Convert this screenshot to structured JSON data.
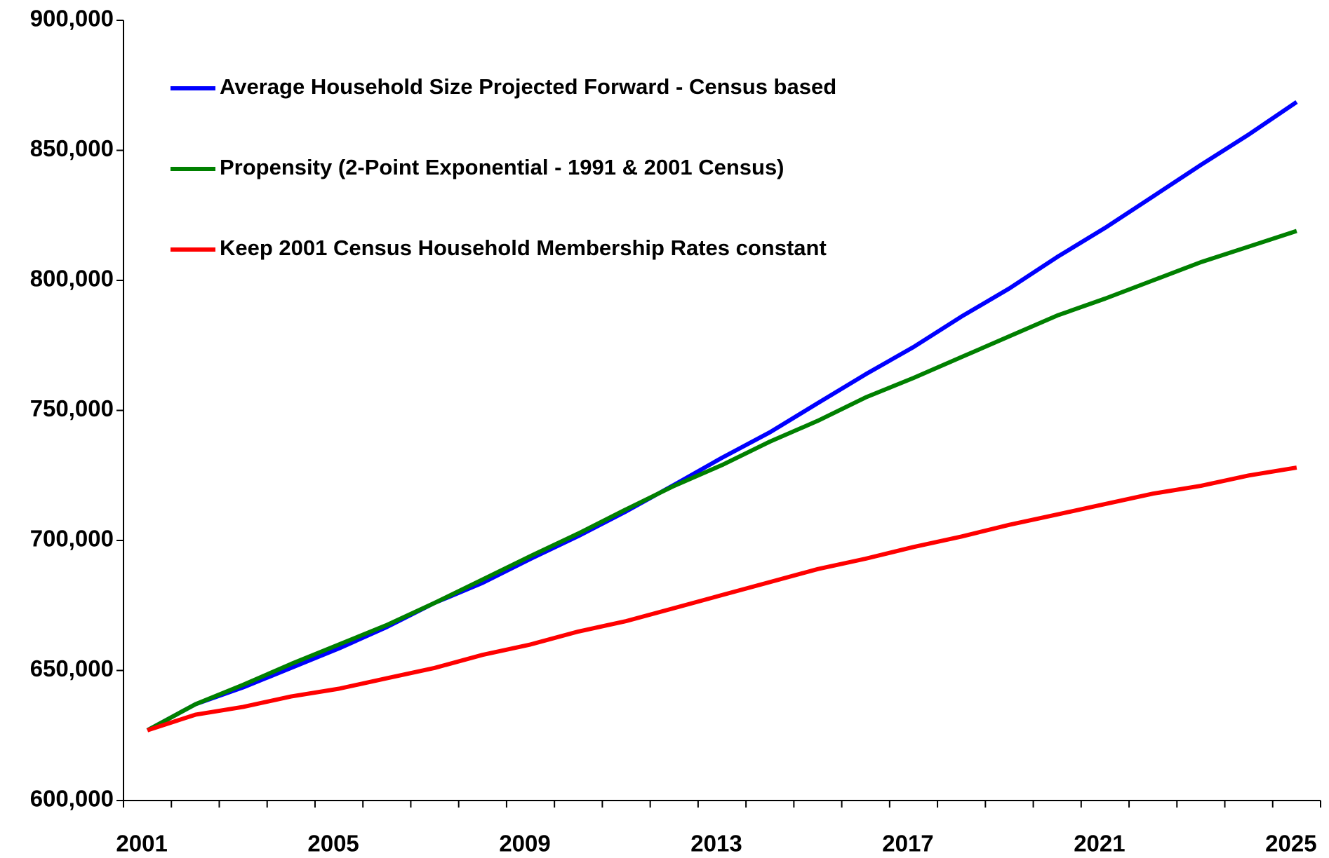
{
  "chart_data": {
    "type": "line",
    "categories": [
      "2001",
      null,
      null,
      null,
      "2005",
      null,
      null,
      null,
      "2009",
      null,
      null,
      null,
      "2013",
      null,
      null,
      null,
      "2017",
      null,
      null,
      null,
      "2021",
      null,
      null,
      null,
      "2025"
    ],
    "series": [
      {
        "name": "Average Household Size Projected Forward - Census based",
        "color": "#0000ff",
        "values": [
          627000,
          637000,
          643500,
          651000,
          658500,
          666700,
          676000,
          683700,
          692900,
          701700,
          711200,
          721400,
          731800,
          741600,
          752800,
          763900,
          774400,
          786100,
          796900,
          809000,
          820200,
          832300,
          844400,
          856100,
          868600
        ]
      },
      {
        "name": "Propensity (2-Point Exponential - 1991 & 2001 Census)",
        "color": "#008000",
        "values": [
          627000,
          637000,
          644500,
          652500,
          660000,
          667500,
          676000,
          685000,
          694000,
          702700,
          712000,
          721000,
          729000,
          738000,
          746000,
          755000,
          762500,
          770500,
          778500,
          786500,
          793000,
          800000,
          807000,
          813000,
          819000
        ]
      },
      {
        "name": "Keep 2001 Census Household Membership Rates constant",
        "color": "#ff0000",
        "values": [
          627000,
          633000,
          636000,
          640000,
          643000,
          647000,
          651000,
          656000,
          660000,
          665000,
          669000,
          674000,
          679000,
          684000,
          689000,
          693000,
          697500,
          701500,
          706000,
          710000,
          714000,
          718000,
          721000,
          725000,
          728000
        ]
      }
    ],
    "ylim": [
      600000,
      900000
    ],
    "yticks": [
      {
        "value": 600000,
        "label": "600,000"
      },
      {
        "value": 650000,
        "label": "650,000"
      },
      {
        "value": 700000,
        "label": "700,000"
      },
      {
        "value": 750000,
        "label": "750,000"
      },
      {
        "value": 800000,
        "label": "800,000"
      },
      {
        "value": 850000,
        "label": "850,000"
      },
      {
        "value": 900000,
        "label": "900,000"
      }
    ],
    "grid": false,
    "legend": "upper-left"
  }
}
